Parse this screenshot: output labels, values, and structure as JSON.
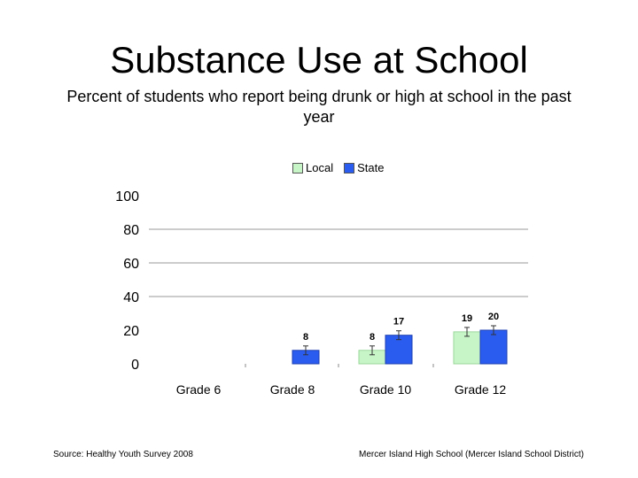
{
  "title": "Substance Use at School",
  "subtitle": "Percent of students who report being drunk or high at school in the past year",
  "footer": {
    "source": "Source: Healthy Youth Survey 2008",
    "school": "Mercer Island High School (Mercer Island School District)"
  },
  "colors": {
    "local": "#c8f5c8",
    "state": "#2a5cf0",
    "grid": "#9a9a9a"
  },
  "chart_data": {
    "type": "bar",
    "categories": [
      "Grade 6",
      "Grade 8",
      "Grade 10",
      "Grade 12"
    ],
    "series": [
      {
        "name": "Local",
        "values": [
          null,
          null,
          8,
          19
        ],
        "labels": [
          "",
          "",
          "8",
          "19"
        ]
      },
      {
        "name": "State",
        "values": [
          null,
          8,
          17,
          20
        ],
        "labels": [
          "",
          "8",
          "17",
          "20"
        ]
      }
    ],
    "yticks": [
      0,
      20,
      40,
      60,
      80,
      100
    ],
    "ylim": [
      0,
      100
    ],
    "gridlines": [
      40,
      60,
      80
    ],
    "legend_position": "top"
  }
}
